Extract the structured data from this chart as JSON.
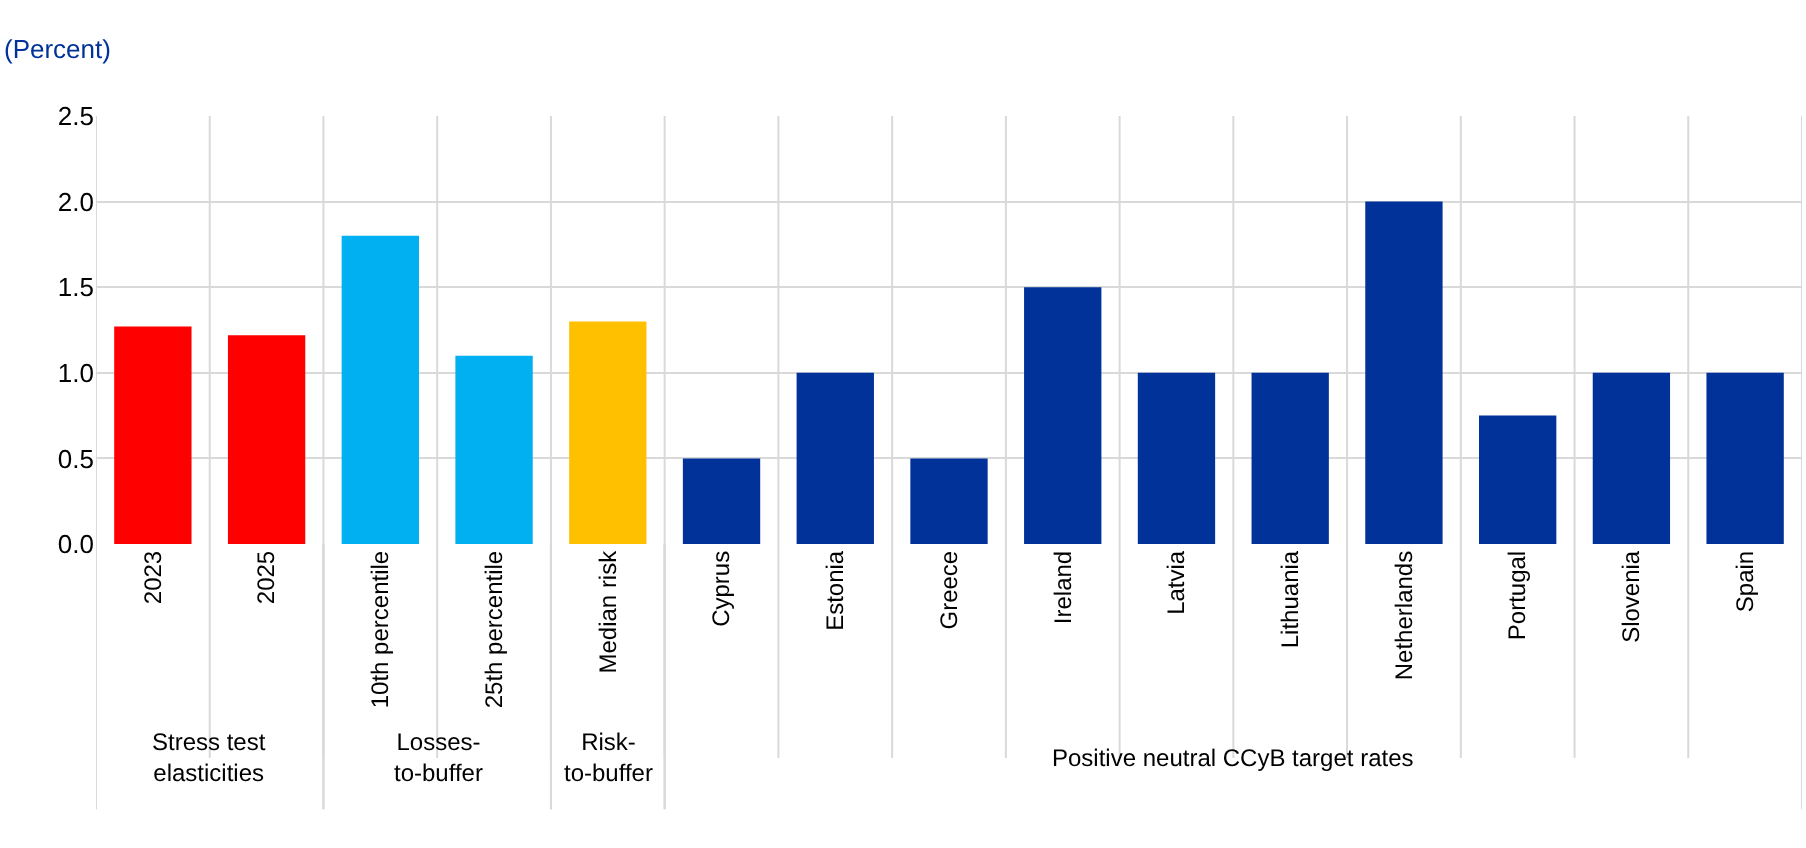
{
  "chart_data": {
    "type": "bar",
    "ylabel": "(Percent)",
    "categories": [
      "2023",
      "2025",
      "10th percentile",
      "25th percentile",
      "Median risk",
      "Cyprus",
      "Estonia",
      "Greece",
      "Ireland",
      "Latvia",
      "Lithuania",
      "Netherlands",
      "Portugal",
      "Slovenia",
      "Spain"
    ],
    "series": [
      {
        "color": "#ff0000",
        "values": [
          1.27,
          1.22,
          null,
          null,
          null,
          null,
          null,
          null,
          null,
          null,
          null,
          null,
          null,
          null,
          null
        ]
      },
      {
        "color": "#00b0f0",
        "values": [
          null,
          null,
          1.8,
          1.1,
          null,
          null,
          null,
          null,
          null,
          null,
          null,
          null,
          null,
          null,
          null
        ]
      },
      {
        "color": "#ffc000",
        "values": [
          null,
          null,
          null,
          null,
          1.3,
          null,
          null,
          null,
          null,
          null,
          null,
          null,
          null,
          null,
          null
        ]
      },
      {
        "color": "#003299",
        "values": [
          null,
          null,
          null,
          null,
          null,
          0.5,
          1.0,
          0.5,
          1.5,
          1.0,
          1.0,
          2.0,
          0.75,
          1.0,
          1.0
        ]
      }
    ],
    "annotations": [
      "Stress test elasticities",
      "Losses-to-buffer",
      "Risk-to-buffer",
      "Positive neutral CCyB target rates"
    ],
    "ylim": [
      0,
      2.5
    ],
    "yticks": [
      {
        "value": 0,
        "label": "0.0"
      },
      0.5,
      {
        "value": 1,
        "label": "1.0"
      },
      1.5,
      {
        "value": 2,
        "label": "2.0"
      },
      2.5
    ],
    "grid": true
  }
}
